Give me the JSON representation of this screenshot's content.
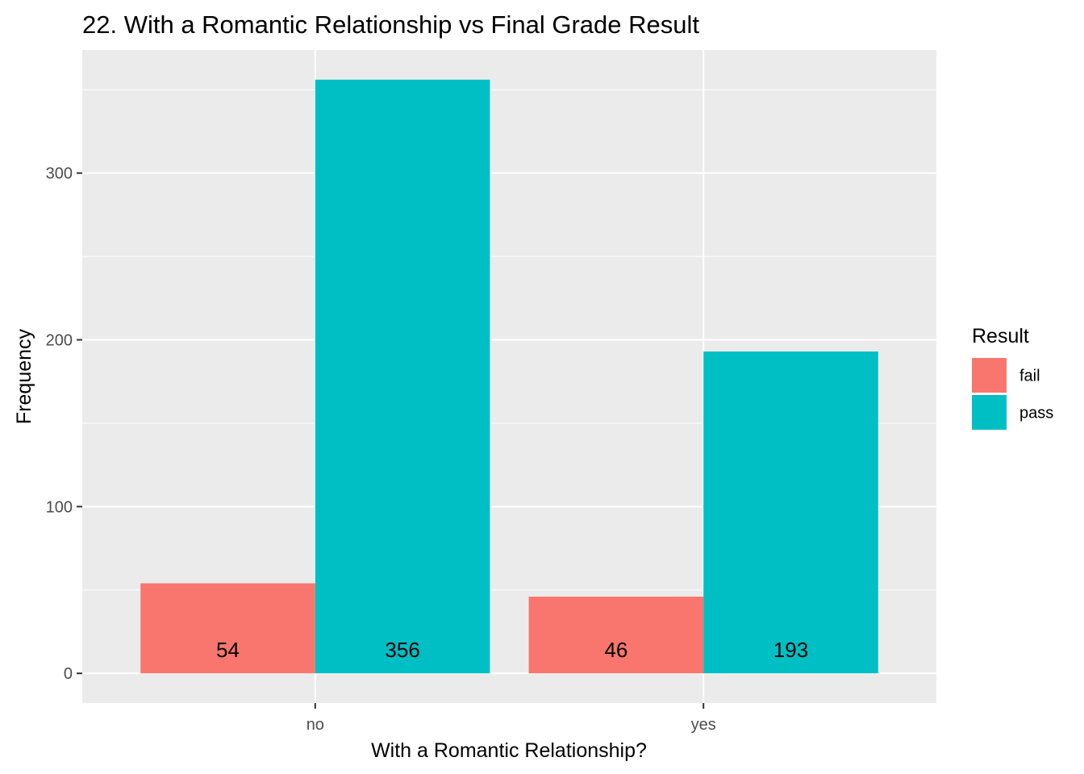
{
  "chart_data": {
    "type": "bar",
    "title": "22. With a Romantic Relationship vs Final Grade Result",
    "xlabel": "With a Romantic Relationship?",
    "ylabel": "Frequency",
    "categories": [
      "no",
      "yes"
    ],
    "series": [
      {
        "name": "fail",
        "values": [
          54,
          46
        ],
        "color": "#F8766D"
      },
      {
        "name": "pass",
        "values": [
          356,
          193
        ],
        "color": "#00BFC4"
      }
    ],
    "data_labels": [
      [
        "54",
        "46"
      ],
      [
        "356",
        "193"
      ]
    ],
    "ylim": [
      -17.8,
      373.8
    ],
    "yticks": [
      0,
      100,
      200,
      300
    ],
    "ytick_labels": [
      "0",
      "100",
      "200",
      "300"
    ],
    "grid": true,
    "legend": {
      "title": "Result",
      "position": "right",
      "entries": [
        "fail",
        "pass"
      ]
    },
    "panel_background": "#EBEBEB",
    "grid_color": "#FFFFFF"
  }
}
